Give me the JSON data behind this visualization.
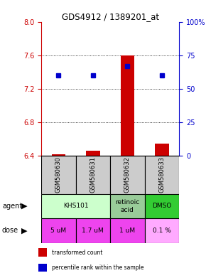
{
  "title": "GDS4912 / 1389201_at",
  "samples": [
    "GSM580630",
    "GSM580631",
    "GSM580632",
    "GSM580633"
  ],
  "bar_values": [
    6.415,
    6.46,
    7.6,
    6.54
  ],
  "bar_base": 6.4,
  "dot_values": [
    7.36,
    7.36,
    7.47,
    7.36
  ],
  "ylim_left": [
    6.4,
    8.0
  ],
  "yticks_left": [
    6.4,
    6.8,
    7.2,
    7.6,
    8.0
  ],
  "yticks_right": [
    0,
    25,
    50,
    75,
    100
  ],
  "bar_color": "#cc0000",
  "dot_color": "#0000cc",
  "agent_spans": [
    {
      "label": "KHS101",
      "start": 0,
      "end": 1,
      "color": "#ccffcc"
    },
    {
      "label": "retinoic\nacid",
      "start": 2,
      "end": 2,
      "color": "#99cc99"
    },
    {
      "label": "DMSO",
      "start": 3,
      "end": 3,
      "color": "#33cc33"
    }
  ],
  "dose_row": [
    "5 uM",
    "1.7 uM",
    "1 uM",
    "0.1 %"
  ],
  "dose_colors": [
    "#ee44ee",
    "#ee44ee",
    "#ee44ee",
    "#ffaaff"
  ],
  "sample_bg": "#cccccc",
  "legend_red": "transformed count",
  "legend_blue": "percentile rank within the sample",
  "left_label_color": "#cc0000",
  "right_label_color": "#0000cc",
  "grid_ticks": [
    6.8,
    7.2,
    7.6
  ]
}
